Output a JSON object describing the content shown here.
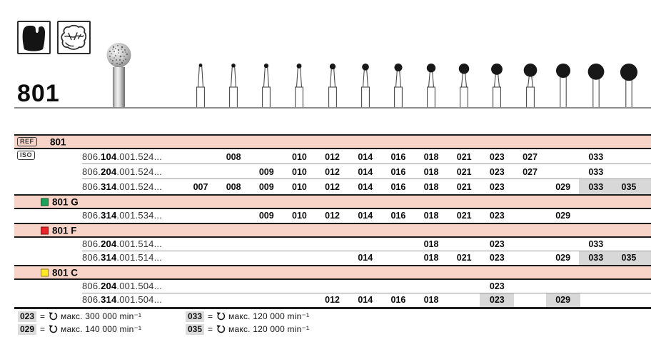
{
  "header": {
    "figure_number": "801",
    "indication_icons": [
      "tooth-crown",
      "tooth-occlusal"
    ]
  },
  "columns": [
    "007",
    "008",
    "009",
    "010",
    "012",
    "014",
    "016",
    "018",
    "021",
    "023",
    "027",
    "029",
    "033",
    "035"
  ],
  "bur_row": {
    "straight_shank_from_index": 11
  },
  "table": {
    "ref_chip": "REF",
    "iso_chip": "ISO",
    "sections": [
      {
        "label": "801",
        "color": null,
        "rows": [
          {
            "iso_pre": "806.",
            "iso_bold": "104",
            "iso_post": ".001.524...",
            "sizes": [
              "008",
              "010",
              "012",
              "014",
              "016",
              "018",
              "021",
              "023",
              "027",
              "033"
            ]
          },
          {
            "iso_pre": "806.",
            "iso_bold": "204",
            "iso_post": ".001.524...",
            "sizes": [
              "009",
              "010",
              "012",
              "014",
              "016",
              "018",
              "021",
              "023",
              "027",
              "033"
            ]
          },
          {
            "iso_pre": "806.",
            "iso_bold": "314",
            "iso_post": ".001.524...",
            "sizes": [
              "007",
              "008",
              "009",
              "010",
              "012",
              "014",
              "016",
              "018",
              "021",
              "023",
              "029",
              "033",
              "035"
            ],
            "highlight": {
              "type": "band",
              "from": "033"
            }
          }
        ]
      },
      {
        "label": "801 G",
        "color": "#1fa05a",
        "rows": [
          {
            "iso_pre": "806.",
            "iso_bold": "314",
            "iso_post": ".001.534...",
            "sizes": [
              "009",
              "010",
              "012",
              "014",
              "016",
              "018",
              "021",
              "023",
              "029"
            ]
          }
        ]
      },
      {
        "label": "801 F",
        "color": "#e6252b",
        "rows": [
          {
            "iso_pre": "806.",
            "iso_bold": "204",
            "iso_post": ".001.514...",
            "sizes": [
              "018",
              "023",
              "033"
            ]
          },
          {
            "iso_pre": "806.",
            "iso_bold": "314",
            "iso_post": ".001.514...",
            "sizes": [
              "014",
              "018",
              "021",
              "023",
              "029",
              "033",
              "035"
            ],
            "highlight": {
              "type": "band",
              "from": "033"
            }
          }
        ]
      },
      {
        "label": "801 C",
        "color": "#ffe829",
        "rows": [
          {
            "iso_pre": "806.",
            "iso_bold": "204",
            "iso_post": ".001.504...",
            "sizes": [
              "023"
            ]
          },
          {
            "iso_pre": "806.",
            "iso_bold": "314",
            "iso_post": ".001.504...",
            "sizes": [
              "012",
              "014",
              "016",
              "018",
              "023",
              "029"
            ],
            "highlight": {
              "type": "cells",
              "cols": [
                "023",
                "029"
              ]
            }
          }
        ]
      }
    ]
  },
  "legend": {
    "equals": "=",
    "items": [
      {
        "size": "023",
        "text": "макс. 300 000 min⁻¹"
      },
      {
        "size": "029",
        "text": "макс. 140 000 min⁻¹"
      },
      {
        "size": "033",
        "text": "макс. 120 000 min⁻¹"
      },
      {
        "size": "035",
        "text": "макс. 120 000 min⁻¹"
      }
    ]
  },
  "colors": {
    "row_pink": "#f8d3c7",
    "highlight_gray": "#d8d8d8",
    "rule_dark": "#1c1c1c",
    "rule_gray": "#9a9a9a",
    "green_square": "#1fa05a",
    "red_square": "#e6252b",
    "yellow_square": "#ffe829"
  }
}
